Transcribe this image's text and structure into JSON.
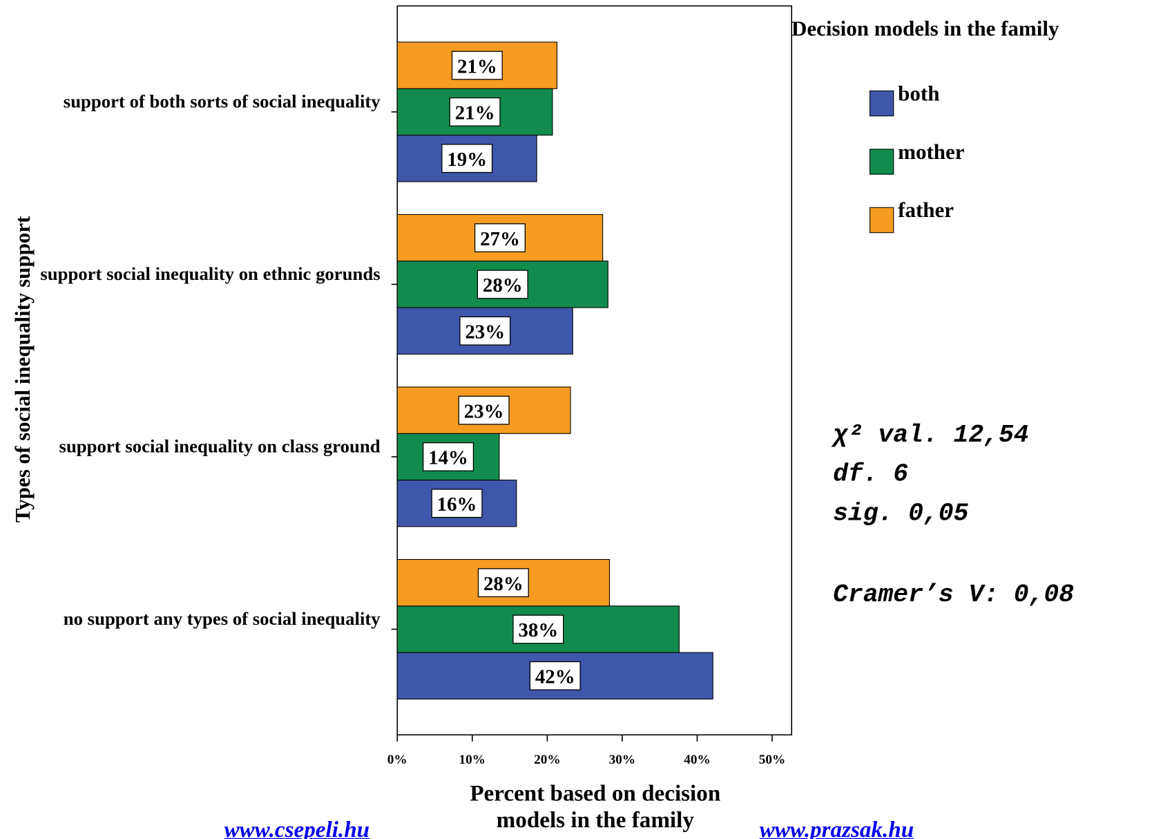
{
  "chart_data": {
    "type": "barh",
    "x_label": "Percent based on decision models in the family",
    "y_label": "Types of social inequality support",
    "legend_title": "Decision models in the family",
    "categories": [
      "support of both sorts of social inequality",
      "support social inequality on ethnic gorunds",
      "support social inequality on class ground",
      "no support any types of social inequality"
    ],
    "series": [
      {
        "name": "both",
        "color": "#3f57ab",
        "values": [
          18.6,
          23.4,
          15.9,
          42.1
        ],
        "value_labels": [
          "19%",
          "23%",
          "16%",
          "42%"
        ]
      },
      {
        "name": "mother",
        "color": "#118c4e",
        "values": [
          20.7,
          28.1,
          13.6,
          37.6
        ],
        "value_labels": [
          "21%",
          "28%",
          "14%",
          "38%"
        ]
      },
      {
        "name": "father",
        "color": "#f79c22",
        "values": [
          21.3,
          27.4,
          23.1,
          28.3
        ],
        "value_labels": [
          "21%",
          "27%",
          "23%",
          "28%"
        ]
      }
    ],
    "xlim": [
      0,
      52.6
    ],
    "xticks": [
      {
        "value": 0,
        "label": "0%"
      },
      {
        "value": 10,
        "label": "10%"
      },
      {
        "value": 20,
        "label": "20%"
      },
      {
        "value": 30,
        "label": "30%"
      },
      {
        "value": 40,
        "label": "40%"
      },
      {
        "value": 50,
        "label": "50%"
      }
    ],
    "annotations": [
      "χ² val. 12,54",
      "df. 6",
      "sig. 0,05",
      "Cramer’s V: 0,08"
    ],
    "footer_links": [
      "www.csepeli.hu",
      "www.prazsak.hu"
    ]
  }
}
